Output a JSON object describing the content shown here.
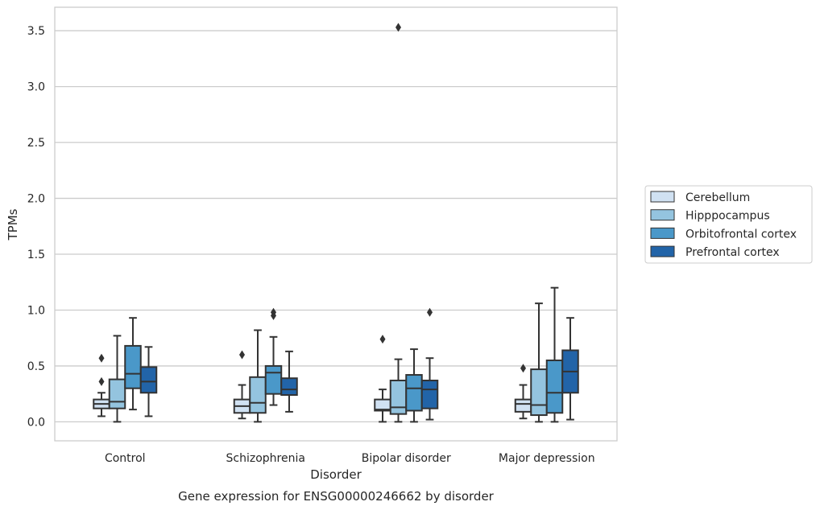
{
  "chart_data": {
    "type": "box",
    "caption": "Gene expression for ENSG00000246662 by disorder",
    "xlabel": "Disorder",
    "ylabel": "TPMs",
    "ylim": [
      -0.17,
      3.71
    ],
    "yticks": [
      0.0,
      0.5,
      1.0,
      1.5,
      2.0,
      2.5,
      3.0,
      3.5
    ],
    "ytick_labels": [
      "0.0",
      "0.5",
      "1.0",
      "1.5",
      "2.0",
      "2.5",
      "3.0",
      "3.5"
    ],
    "grid": "horizontal",
    "legend_position": "right",
    "categories": [
      "Control",
      "Schizophrenia",
      "Bipolar disorder",
      "Major depression"
    ],
    "series": [
      {
        "name": "Cerebellum",
        "color": "#d0e1f2",
        "boxes": [
          {
            "whisker_low": 0.05,
            "q1": 0.12,
            "median": 0.16,
            "q3": 0.2,
            "whisker_high": 0.26,
            "outliers": [
              0.36,
              0.57
            ]
          },
          {
            "whisker_low": 0.03,
            "q1": 0.08,
            "median": 0.14,
            "q3": 0.2,
            "whisker_high": 0.33,
            "outliers": [
              0.6
            ]
          },
          {
            "whisker_low": 0.0,
            "q1": 0.1,
            "median": 0.11,
            "q3": 0.2,
            "whisker_high": 0.29,
            "outliers": [
              0.74
            ]
          },
          {
            "whisker_low": 0.03,
            "q1": 0.09,
            "median": 0.16,
            "q3": 0.2,
            "whisker_high": 0.33,
            "outliers": [
              0.48
            ]
          }
        ]
      },
      {
        "name": "Hipppocampus",
        "color": "#94c4df",
        "boxes": [
          {
            "whisker_low": 0.0,
            "q1": 0.12,
            "median": 0.18,
            "q3": 0.38,
            "whisker_high": 0.77,
            "outliers": []
          },
          {
            "whisker_low": 0.0,
            "q1": 0.08,
            "median": 0.17,
            "q3": 0.4,
            "whisker_high": 0.82,
            "outliers": []
          },
          {
            "whisker_low": 0.0,
            "q1": 0.07,
            "median": 0.13,
            "q3": 0.37,
            "whisker_high": 0.56,
            "outliers": [
              3.53
            ]
          },
          {
            "whisker_low": 0.0,
            "q1": 0.06,
            "median": 0.15,
            "q3": 0.47,
            "whisker_high": 1.06,
            "outliers": []
          }
        ]
      },
      {
        "name": "Orbitofrontal cortex",
        "color": "#4a98c9",
        "boxes": [
          {
            "whisker_low": 0.11,
            "q1": 0.3,
            "median": 0.43,
            "q3": 0.68,
            "whisker_high": 0.93,
            "outliers": []
          },
          {
            "whisker_low": 0.15,
            "q1": 0.25,
            "median": 0.44,
            "q3": 0.5,
            "whisker_high": 0.76,
            "outliers": [
              0.95,
              0.98
            ]
          },
          {
            "whisker_low": 0.0,
            "q1": 0.1,
            "median": 0.3,
            "q3": 0.42,
            "whisker_high": 0.65,
            "outliers": []
          },
          {
            "whisker_low": 0.0,
            "q1": 0.08,
            "median": 0.26,
            "q3": 0.55,
            "whisker_high": 1.2,
            "outliers": []
          }
        ]
      },
      {
        "name": "Prefrontal cortex",
        "color": "#2264a8",
        "boxes": [
          {
            "whisker_low": 0.05,
            "q1": 0.26,
            "median": 0.36,
            "q3": 0.49,
            "whisker_high": 0.67,
            "outliers": []
          },
          {
            "whisker_low": 0.09,
            "q1": 0.24,
            "median": 0.29,
            "q3": 0.39,
            "whisker_high": 0.63,
            "outliers": []
          },
          {
            "whisker_low": 0.02,
            "q1": 0.12,
            "median": 0.29,
            "q3": 0.37,
            "whisker_high": 0.57,
            "outliers": [
              0.98
            ]
          },
          {
            "whisker_low": 0.02,
            "q1": 0.26,
            "median": 0.45,
            "q3": 0.64,
            "whisker_high": 0.93,
            "outliers": []
          }
        ]
      }
    ]
  },
  "colors": {
    "edge": "#333333",
    "grid": "#cccccc",
    "frame": "#cccccc",
    "text": "#262626"
  }
}
